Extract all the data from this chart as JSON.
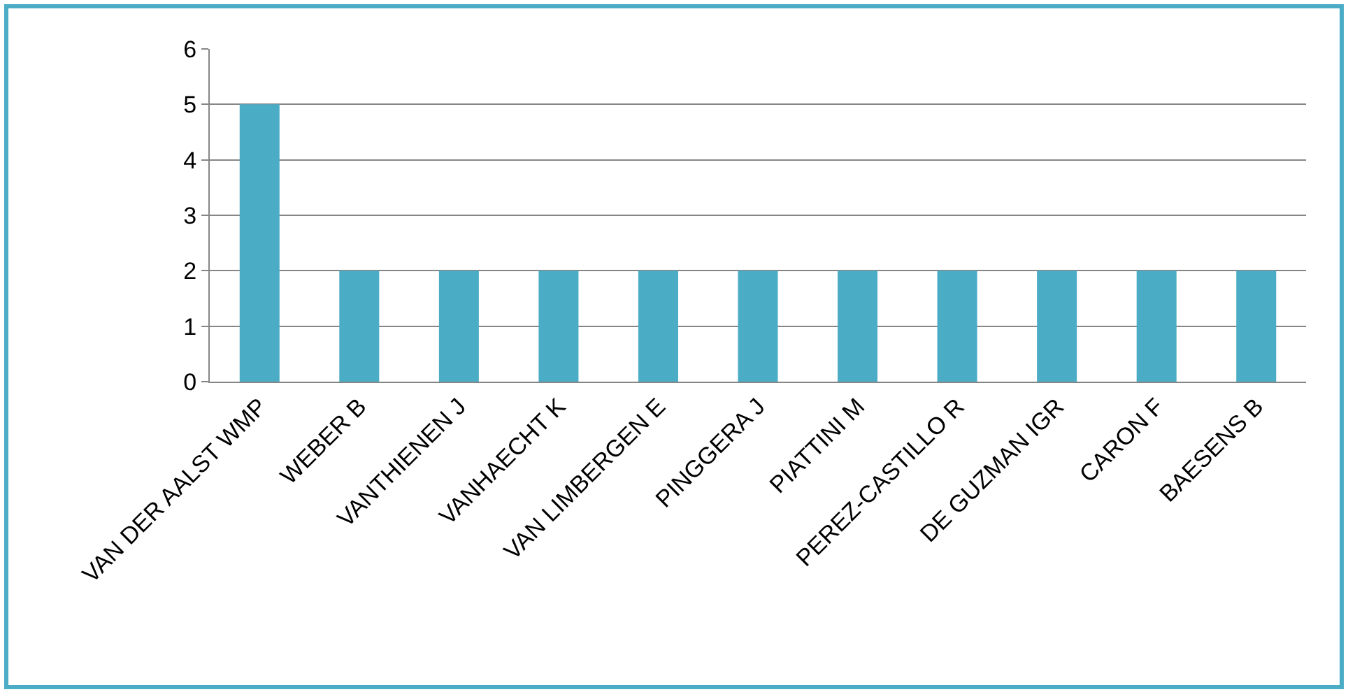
{
  "chart_data": {
    "type": "bar",
    "categories": [
      "VAN DER AALST WMP",
      "WEBER B",
      "VANTHIENEN J",
      "VANHAECHT K",
      "VAN LIMBERGEN E",
      "PINGGERA J",
      "PIATTINI M",
      "PEREZ-CASTILLO R",
      "DE GUZMAN IGR",
      "CARON F",
      "BAESENS B"
    ],
    "values": [
      5,
      2,
      2,
      2,
      2,
      2,
      2,
      2,
      2,
      2,
      2
    ],
    "color": "#4bacc6",
    "ylim": [
      0,
      6
    ],
    "yticks": [
      0,
      1,
      2,
      3,
      4,
      5,
      6
    ],
    "grid": "y",
    "legend": false
  }
}
